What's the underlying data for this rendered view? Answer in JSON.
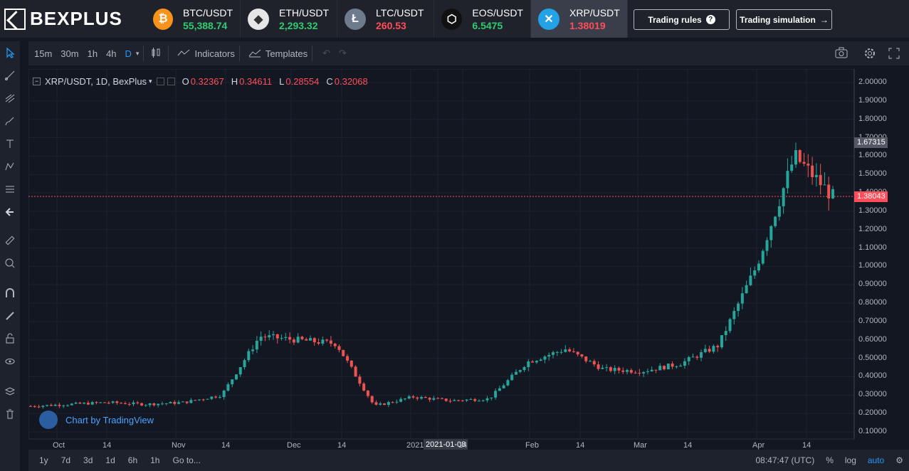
{
  "brand": "BEXPLUS",
  "tickers": [
    {
      "symbol": "BTC/USDT",
      "price": "55,388.74",
      "trend": "up",
      "color": "#f7931a",
      "glyph": "₿",
      "icon": "bitcoin-icon"
    },
    {
      "symbol": "ETH/USDT",
      "price": "2,293.32",
      "trend": "up",
      "color": "#e6e6e6",
      "glyph": "◆",
      "icon": "ethereum-icon"
    },
    {
      "symbol": "LTC/USDT",
      "price": "260.53",
      "trend": "down",
      "color": "#6d7b8d",
      "glyph": "Ł",
      "icon": "litecoin-icon"
    },
    {
      "symbol": "EOS/USDT",
      "price": "6.5475",
      "trend": "up",
      "color": "#111111",
      "glyph": "⬡",
      "icon": "eos-icon"
    },
    {
      "symbol": "XRP/USDT",
      "price": "1.38019",
      "trend": "down",
      "color": "#23a2e6",
      "glyph": "✕",
      "icon": "xrp-icon"
    }
  ],
  "header_buttons": {
    "rules": "Trading rules",
    "simulation": "Trading simulation"
  },
  "toolbar": {
    "timeframes": [
      "15m",
      "30m",
      "1h",
      "4h",
      "D"
    ],
    "indicators": "Indicators",
    "templates": "Templates"
  },
  "legend": {
    "symbol": "XRP/USDT, 1D, BexPlus",
    "o_label": "O",
    "o": "0.32367",
    "h_label": "H",
    "h": "0.34611",
    "l_label": "L",
    "l": "0.28554",
    "c_label": "C",
    "c": "0.32068"
  },
  "tv_badge": "Chart by TradingView",
  "price_scale": [
    "2.00000",
    "1.90000",
    "1.80000",
    "1.70000",
    "1.60000",
    "1.50000",
    "1.40000",
    "1.30000",
    "1.20000",
    "1.10000",
    "1.00000",
    "0.90000",
    "0.80000",
    "0.70000",
    "0.60000",
    "0.50000",
    "0.40000",
    "0.30000",
    "0.20000",
    "0.10000"
  ],
  "price_tags": {
    "upper": "1.67315",
    "current": "1.38043"
  },
  "time_axis": [
    "Oct",
    "14",
    "Nov",
    "14",
    "Dec",
    "14",
    "2021",
    "2021-01-08",
    "14",
    "Feb",
    "14",
    "Mar",
    "14",
    "Apr",
    "14"
  ],
  "ranges": [
    "1y",
    "7d",
    "3d",
    "1d",
    "6h",
    "1h",
    "Go to..."
  ],
  "status": {
    "time": "08:47:47 (UTC)",
    "percent": "%",
    "log": "log",
    "auto": "auto"
  },
  "chart_data": {
    "type": "candlestick",
    "title": "XRP/USDT, 1D, BexPlus",
    "x": [
      "Oct",
      "Nov",
      "Dec",
      "2021",
      "Feb",
      "Mar",
      "Apr"
    ],
    "close_approx": [
      0.24,
      0.25,
      0.26,
      0.25,
      0.26,
      0.3,
      0.62,
      0.6,
      0.58,
      0.24,
      0.29,
      0.27,
      0.28,
      0.48,
      0.55,
      0.44,
      0.43,
      0.47,
      0.57,
      1.0,
      1.6,
      1.38
    ],
    "ylim": [
      0.1,
      2.0
    ]
  }
}
